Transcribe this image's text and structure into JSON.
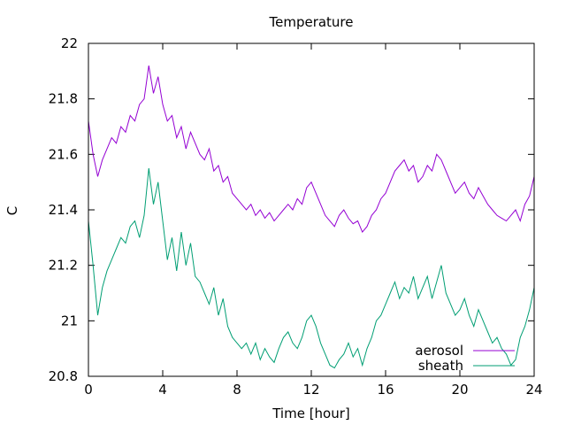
{
  "chart_data": {
    "type": "line",
    "title": "Temperature",
    "xlabel": "Time [hour]",
    "ylabel": "C",
    "xlim": [
      0,
      24
    ],
    "ylim": [
      20.8,
      22
    ],
    "xticks": [
      0,
      4,
      8,
      12,
      16,
      20,
      24
    ],
    "yticks": [
      20.8,
      21,
      21.2,
      21.4,
      21.6,
      21.8,
      22
    ],
    "xtick_labels": [
      "0",
      "4",
      "8",
      "12",
      "16",
      "20",
      "24"
    ],
    "ytick_labels": [
      "20.8",
      "21",
      "21.2",
      "21.4",
      "21.6",
      "21.8",
      "22"
    ],
    "grid": false,
    "legend_position": "bottom-right",
    "series": [
      {
        "name": "aerosol",
        "color": "#9400d3",
        "x": [
          0,
          0.25,
          0.5,
          0.75,
          1,
          1.25,
          1.5,
          1.75,
          2,
          2.25,
          2.5,
          2.75,
          3,
          3.25,
          3.5,
          3.75,
          4,
          4.25,
          4.5,
          4.75,
          5,
          5.25,
          5.5,
          5.75,
          6,
          6.25,
          6.5,
          6.75,
          7,
          7.25,
          7.5,
          7.75,
          8,
          8.25,
          8.5,
          8.75,
          9,
          9.25,
          9.5,
          9.75,
          10,
          10.25,
          10.5,
          10.75,
          11,
          11.25,
          11.5,
          11.75,
          12,
          12.25,
          12.5,
          12.75,
          13,
          13.25,
          13.5,
          13.75,
          14,
          14.25,
          14.5,
          14.75,
          15,
          15.25,
          15.5,
          15.75,
          16,
          16.25,
          16.5,
          16.75,
          17,
          17.25,
          17.5,
          17.75,
          18,
          18.25,
          18.5,
          18.75,
          19,
          19.25,
          19.5,
          19.75,
          20,
          20.25,
          20.5,
          20.75,
          21,
          21.25,
          21.5,
          21.75,
          22,
          22.25,
          22.5,
          22.75,
          23,
          23.25,
          23.5,
          23.75,
          24
        ],
        "y": [
          21.72,
          21.6,
          21.52,
          21.58,
          21.62,
          21.66,
          21.64,
          21.7,
          21.68,
          21.74,
          21.72,
          21.78,
          21.8,
          21.92,
          21.82,
          21.88,
          21.78,
          21.72,
          21.74,
          21.66,
          21.7,
          21.62,
          21.68,
          21.64,
          21.6,
          21.58,
          21.62,
          21.54,
          21.56,
          21.5,
          21.52,
          21.46,
          21.44,
          21.42,
          21.4,
          21.42,
          21.38,
          21.4,
          21.37,
          21.39,
          21.36,
          21.38,
          21.4,
          21.42,
          21.4,
          21.44,
          21.42,
          21.48,
          21.5,
          21.46,
          21.42,
          21.38,
          21.36,
          21.34,
          21.38,
          21.4,
          21.37,
          21.35,
          21.36,
          21.32,
          21.34,
          21.38,
          21.4,
          21.44,
          21.46,
          21.5,
          21.54,
          21.56,
          21.58,
          21.54,
          21.56,
          21.5,
          21.52,
          21.56,
          21.54,
          21.6,
          21.58,
          21.54,
          21.5,
          21.46,
          21.48,
          21.5,
          21.46,
          21.44,
          21.48,
          21.45,
          21.42,
          21.4,
          21.38,
          21.37,
          21.36,
          21.38,
          21.4,
          21.36,
          21.42,
          21.45,
          21.52
        ]
      },
      {
        "name": "sheath",
        "color": "#009e73",
        "x": [
          0,
          0.25,
          0.5,
          0.75,
          1,
          1.25,
          1.5,
          1.75,
          2,
          2.25,
          2.5,
          2.75,
          3,
          3.25,
          3.5,
          3.75,
          4,
          4.25,
          4.5,
          4.75,
          5,
          5.25,
          5.5,
          5.75,
          6,
          6.25,
          6.5,
          6.75,
          7,
          7.25,
          7.5,
          7.75,
          8,
          8.25,
          8.5,
          8.75,
          9,
          9.25,
          9.5,
          9.75,
          10,
          10.25,
          10.5,
          10.75,
          11,
          11.25,
          11.5,
          11.75,
          12,
          12.25,
          12.5,
          12.75,
          13,
          13.25,
          13.5,
          13.75,
          14,
          14.25,
          14.5,
          14.75,
          15,
          15.25,
          15.5,
          15.75,
          16,
          16.25,
          16.5,
          16.75,
          17,
          17.25,
          17.5,
          17.75,
          18,
          18.25,
          18.5,
          18.75,
          19,
          19.25,
          19.5,
          19.75,
          20,
          20.25,
          20.5,
          20.75,
          21,
          21.25,
          21.5,
          21.75,
          22,
          22.25,
          22.5,
          22.75,
          23,
          23.25,
          23.5,
          23.75,
          24
        ],
        "y": [
          21.36,
          21.2,
          21.02,
          21.12,
          21.18,
          21.22,
          21.26,
          21.3,
          21.28,
          21.34,
          21.36,
          21.3,
          21.38,
          21.55,
          21.42,
          21.5,
          21.36,
          21.22,
          21.3,
          21.18,
          21.32,
          21.2,
          21.28,
          21.16,
          21.14,
          21.1,
          21.06,
          21.12,
          21.02,
          21.08,
          20.98,
          20.94,
          20.92,
          20.9,
          20.92,
          20.88,
          20.92,
          20.86,
          20.9,
          20.87,
          20.85,
          20.9,
          20.94,
          20.96,
          20.92,
          20.9,
          20.94,
          21.0,
          21.02,
          20.98,
          20.92,
          20.88,
          20.84,
          20.83,
          20.86,
          20.88,
          20.92,
          20.87,
          20.9,
          20.84,
          20.9,
          20.94,
          21.0,
          21.02,
          21.06,
          21.1,
          21.14,
          21.08,
          21.12,
          21.1,
          21.16,
          21.08,
          21.12,
          21.16,
          21.08,
          21.14,
          21.2,
          21.1,
          21.06,
          21.02,
          21.04,
          21.08,
          21.02,
          20.98,
          21.04,
          21.0,
          20.96,
          20.92,
          20.94,
          20.9,
          20.88,
          20.84,
          20.86,
          20.94,
          20.98,
          21.04,
          21.12
        ]
      }
    ]
  }
}
